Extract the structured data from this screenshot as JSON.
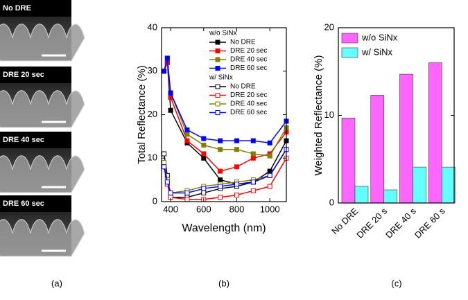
{
  "sem_images": [
    {
      "label": "No DRE"
    },
    {
      "label": "DRE 20 sec"
    },
    {
      "label": "DRE 40 sec"
    },
    {
      "label": "DRE 60 sec"
    }
  ],
  "captions": [
    "(a)",
    "(b)",
    "(c)"
  ],
  "chart_data": [
    {
      "type": "line",
      "xlabel": "Wavelength (nm)",
      "ylabel": "Total Reflectance (%)",
      "x": [
        360,
        380,
        400,
        500,
        600,
        700,
        800,
        900,
        1000,
        1100
      ],
      "xlim": [
        345,
        1100
      ],
      "xticks": [
        400,
        600,
        800,
        1000
      ],
      "ylim": [
        0,
        40
      ],
      "yticks": [
        0,
        10,
        20,
        30,
        40
      ],
      "series_groups": [
        {
          "name": "w/o SiNx",
          "marker": "filled",
          "series": [
            {
              "name": "No DRE",
              "color": "#000000",
              "values": [
                30,
                32,
                21,
                13.5,
                10,
                5,
                4,
                4.5,
                7,
                14
              ]
            },
            {
              "name": "DRE 20 sec",
              "color": "#ff0000",
              "values": [
                30,
                32,
                24,
                14,
                11,
                7,
                8,
                10,
                11,
                16
              ]
            },
            {
              "name": "DRE 40 sec",
              "color": "#808000",
              "values": [
                30,
                33,
                25,
                15.5,
                13,
                12,
                12,
                11,
                10.5,
                17
              ]
            },
            {
              "name": "DRE 60 sec",
              "color": "#0000ff",
              "values": [
                30,
                33,
                25,
                16.5,
                14.5,
                14,
                14,
                14,
                13.5,
                18.5
              ]
            }
          ]
        },
        {
          "name": "w/ SiNx",
          "marker": "open",
          "series": [
            {
              "name": "No DRE",
              "color": "#000000",
              "values": [
                11,
                6,
                1,
                1,
                2,
                3,
                3.5,
                4.5,
                6,
                12
              ]
            },
            {
              "name": "DRE 20 sec",
              "color": "#ff0000",
              "values": [
                8,
                4,
                1,
                0.5,
                0.5,
                1,
                1.5,
                2.5,
                3.5,
                10
              ]
            },
            {
              "name": "DRE 40 sec",
              "color": "#808000",
              "values": [
                9,
                5,
                2,
                2.5,
                3.5,
                4,
                4.5,
                5,
                6,
                12
              ]
            },
            {
              "name": "DRE 60 sec",
              "color": "#0000ff",
              "values": [
                8,
                4.5,
                2,
                2,
                3,
                3.5,
                4,
                4.5,
                6,
                12
              ]
            }
          ]
        }
      ]
    },
    {
      "type": "bar",
      "ylabel": "Weighted Reflectance (%)",
      "categories": [
        "No DRE",
        "DRE 20 s",
        "DRE 40 s",
        "DRE 60 s"
      ],
      "ylim": [
        0,
        20
      ],
      "yticks": [
        0,
        10,
        20
      ],
      "series": [
        {
          "name": "w/o SiNx",
          "color": "#ff66ff",
          "values": [
            9.7,
            12.3,
            14.7,
            16.0
          ]
        },
        {
          "name": "w/ SiNx",
          "color": "#66ffff",
          "values": [
            1.9,
            1.5,
            4.1,
            4.1
          ]
        }
      ]
    }
  ]
}
